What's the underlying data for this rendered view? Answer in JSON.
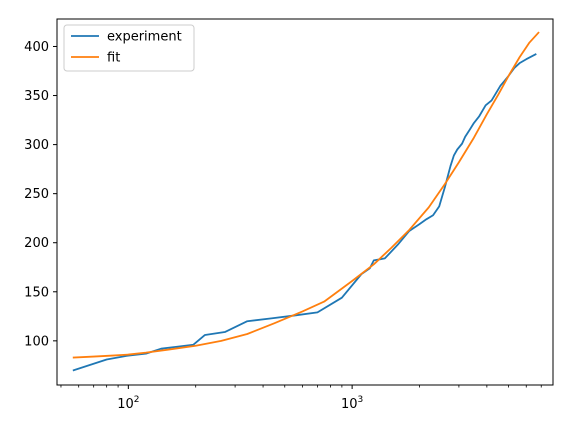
{
  "chart_data": {
    "type": "line",
    "xscale": "log",
    "xlim": [
      48,
      7900
    ],
    "ylim": [
      55,
      428
    ],
    "grid": false,
    "legend_position": "top-left",
    "xticks": [
      {
        "value": 100,
        "base": "10",
        "exp": "2"
      },
      {
        "value": 1000,
        "base": "10",
        "exp": "3"
      }
    ],
    "yticks": [
      100,
      150,
      200,
      250,
      300,
      350,
      400
    ],
    "series": [
      {
        "name": "experiment",
        "color": "#1f77b4",
        "x": [
          57,
          80,
          100,
          120,
          140,
          165,
          195,
          220,
          270,
          340,
          440,
          560,
          700,
          900,
          1100,
          1200,
          1250,
          1400,
          1600,
          1800,
          2000,
          2150,
          2300,
          2450,
          2600,
          2750,
          2850,
          2950,
          3100,
          3200,
          3350,
          3500,
          3700,
          3950,
          4200,
          4600,
          4800,
          5000,
          5300,
          5600,
          6000,
          6600
        ],
        "y": [
          70,
          81,
          85,
          87,
          92,
          94,
          96,
          106,
          109,
          120,
          123,
          126,
          129,
          144,
          168,
          174,
          182,
          184,
          198,
          212,
          219,
          224,
          228,
          237,
          257,
          278,
          289,
          295,
          301,
          308,
          315,
          322,
          329,
          340,
          345,
          360,
          365,
          370,
          378,
          383,
          387,
          392
        ]
      },
      {
        "name": "fit",
        "color": "#ff7f0e",
        "x": [
          57,
          70,
          85,
          100,
          120,
          150,
          200,
          260,
          340,
          450,
          600,
          750,
          1000,
          1250,
          1500,
          1800,
          2200,
          2600,
          3000,
          3500,
          4000,
          4500,
          5000,
          5600,
          6200,
          6800
        ],
        "y": [
          83,
          84,
          85,
          86,
          88,
          91,
          95,
          100,
          107,
          118,
          130,
          140,
          161,
          178,
          195,
          213,
          236,
          260,
          282,
          307,
          331,
          351,
          370,
          389,
          404,
          414
        ]
      }
    ]
  }
}
